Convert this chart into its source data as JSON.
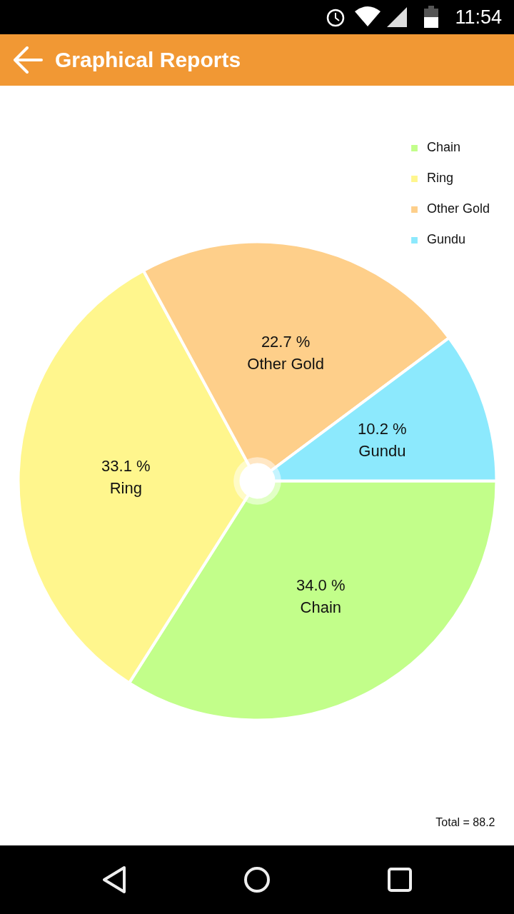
{
  "chart_data": {
    "type": "pie",
    "title": "Graphical Reports",
    "categories": [
      "Chain",
      "Ring",
      "Other Gold",
      "Gundu"
    ],
    "values": [
      34.0,
      33.1,
      22.7,
      10.2
    ],
    "colors": [
      "#c2fe8a",
      "#fff68d",
      "#fecf8a",
      "#8ce9fd"
    ],
    "value_labels": [
      "34.0 %",
      "33.1 %",
      "22.7 %",
      "10.2 %"
    ],
    "legend": "top right",
    "annotations": [
      "Total = 88.2",
      "11:54"
    ]
  }
}
